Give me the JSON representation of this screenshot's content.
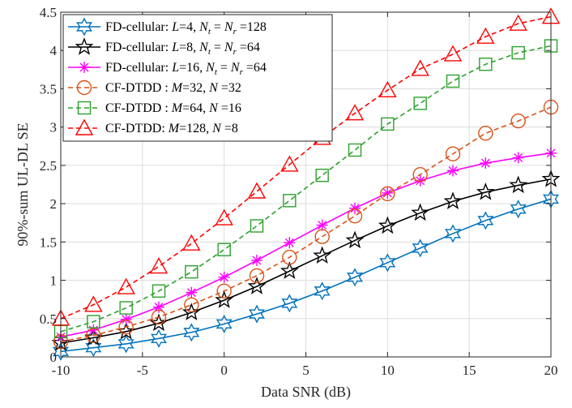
{
  "chart_data": {
    "type": "line",
    "title": "",
    "xlabel": "Data SNR (dB)",
    "ylabel": "90%-sum UL-DL SE",
    "xlim": [
      -10,
      20
    ],
    "ylim": [
      0,
      4.5
    ],
    "xticks": [
      -10,
      -5,
      0,
      5,
      10,
      15,
      20
    ],
    "yticks": [
      0,
      0.5,
      1,
      1.5,
      2,
      2.5,
      3,
      3.5,
      4,
      4.5
    ],
    "xtick_labels": [
      "-10",
      "-5",
      "0",
      "5",
      "10",
      "15",
      "20"
    ],
    "ytick_labels": [
      "0",
      "0.5",
      "1",
      "1.5",
      "2",
      "2.5",
      "3",
      "3.5",
      "4",
      "4.5"
    ],
    "grid": true,
    "legend_position": "top-left",
    "x": [
      -10,
      -8,
      -6,
      -4,
      -2,
      0,
      2,
      4,
      6,
      8,
      10,
      12,
      14,
      16,
      18,
      20
    ],
    "series": [
      {
        "name": "FD-cellular: L=4, Nt = Nr =128",
        "legend_parts": [
          [
            "FD-cellular: ",
            "n"
          ],
          [
            "L",
            "i"
          ],
          [
            "=4, ",
            "n"
          ],
          [
            "N",
            "i"
          ],
          [
            "t",
            "s"
          ],
          [
            " = ",
            "n"
          ],
          [
            "N",
            "i"
          ],
          [
            "r",
            "s"
          ],
          [
            " =128",
            "n"
          ]
        ],
        "color": "#0072BD",
        "marker": "hexagram",
        "dash": "solid",
        "values": [
          0.07,
          0.12,
          0.17,
          0.24,
          0.32,
          0.43,
          0.56,
          0.7,
          0.86,
          1.04,
          1.23,
          1.42,
          1.61,
          1.78,
          1.93,
          2.06
        ]
      },
      {
        "name": "FD-cellular: L=8, Nt = Nr =64",
        "legend_parts": [
          [
            "FD-cellular: ",
            "n"
          ],
          [
            "L",
            "i"
          ],
          [
            "=8, ",
            "n"
          ],
          [
            "N",
            "i"
          ],
          [
            "t",
            "s"
          ],
          [
            " = ",
            "n"
          ],
          [
            "N",
            "i"
          ],
          [
            "r",
            "s"
          ],
          [
            " =64",
            "n"
          ]
        ],
        "color": "#000000",
        "marker": "pentagram",
        "dash": "solid",
        "values": [
          0.18,
          0.25,
          0.33,
          0.44,
          0.58,
          0.74,
          0.92,
          1.12,
          1.32,
          1.52,
          1.71,
          1.88,
          2.03,
          2.15,
          2.24,
          2.32
        ]
      },
      {
        "name": "FD-cellular: L=16, Nt = Nr =64",
        "legend_parts": [
          [
            "FD-cellular: ",
            "n"
          ],
          [
            "L",
            "i"
          ],
          [
            "=16, ",
            "n"
          ],
          [
            "N",
            "i"
          ],
          [
            "t",
            "s"
          ],
          [
            " = ",
            "n"
          ],
          [
            "N",
            "i"
          ],
          [
            "r",
            "s"
          ],
          [
            " =64",
            "n"
          ]
        ],
        "color": "#FF00FF",
        "marker": "asterisk",
        "dash": "solid",
        "values": [
          0.26,
          0.35,
          0.49,
          0.65,
          0.84,
          1.04,
          1.26,
          1.49,
          1.72,
          1.94,
          2.14,
          2.3,
          2.43,
          2.53,
          2.6,
          2.66
        ]
      },
      {
        "name": "CF-DTDD : M=32, N =32",
        "legend_parts": [
          [
            "CF-DTDD : ",
            "n"
          ],
          [
            "M",
            "i"
          ],
          [
            "=32, ",
            "n"
          ],
          [
            "N",
            "i"
          ],
          [
            " =32",
            "n"
          ]
        ],
        "color": "#D95319",
        "marker": "circle",
        "dash": "dashed",
        "values": [
          0.2,
          0.28,
          0.39,
          0.52,
          0.68,
          0.86,
          1.06,
          1.3,
          1.57,
          1.84,
          2.13,
          2.38,
          2.65,
          2.92,
          3.08,
          3.26
        ]
      },
      {
        "name": "CF-DTDD : M=64, N =16",
        "legend_parts": [
          [
            "CF-DTDD : ",
            "n"
          ],
          [
            "M",
            "i"
          ],
          [
            "=64, ",
            "n"
          ],
          [
            "N",
            "i"
          ],
          [
            " =16",
            "n"
          ]
        ],
        "color": "#2CA02C",
        "marker": "square",
        "dash": "dashed",
        "values": [
          0.33,
          0.46,
          0.64,
          0.86,
          1.11,
          1.4,
          1.71,
          2.04,
          2.37,
          2.7,
          3.04,
          3.31,
          3.6,
          3.82,
          3.97,
          4.06
        ]
      },
      {
        "name": "CF-DTDD: M=128, N =8",
        "legend_parts": [
          [
            "CF-DTDD: ",
            "n"
          ],
          [
            "M",
            "i"
          ],
          [
            "=128, ",
            "n"
          ],
          [
            "N",
            "i"
          ],
          [
            " =8",
            "n"
          ]
        ],
        "color": "#FF0000",
        "marker": "triangle",
        "dash": "dashed",
        "values": [
          0.5,
          0.68,
          0.91,
          1.18,
          1.48,
          1.81,
          2.16,
          2.51,
          2.86,
          3.18,
          3.48,
          3.76,
          3.95,
          4.18,
          4.35,
          4.44
        ]
      }
    ]
  }
}
